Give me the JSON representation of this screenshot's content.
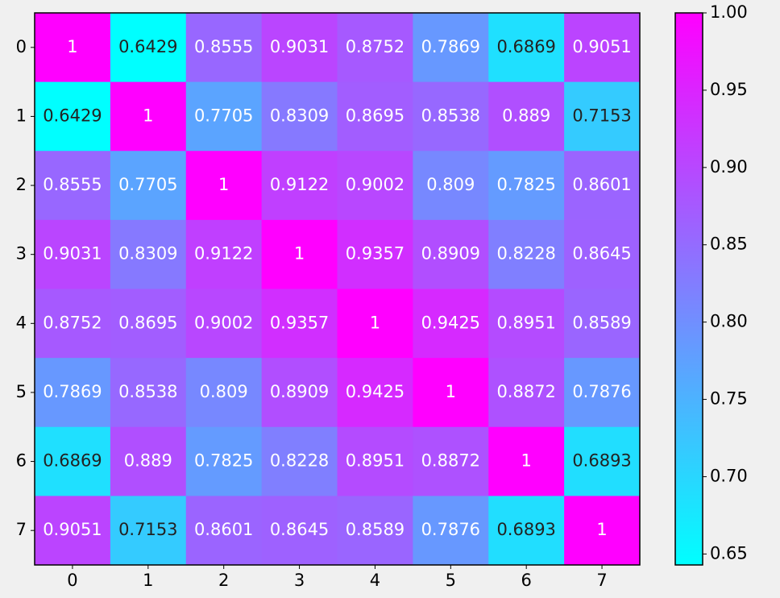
{
  "chart_data": {
    "type": "heatmap",
    "x": [
      "0",
      "1",
      "2",
      "3",
      "4",
      "5",
      "6",
      "7"
    ],
    "y": [
      "0",
      "1",
      "2",
      "3",
      "4",
      "5",
      "6",
      "7"
    ],
    "values": [
      [
        1,
        0.6429,
        0.8555,
        0.9031,
        0.8752,
        0.7869,
        0.6869,
        0.9051
      ],
      [
        0.6429,
        1,
        0.7705,
        0.8309,
        0.8695,
        0.8538,
        0.889,
        0.7153
      ],
      [
        0.8555,
        0.7705,
        1,
        0.9122,
        0.9002,
        0.809,
        0.7825,
        0.8601
      ],
      [
        0.9031,
        0.8309,
        0.9122,
        1,
        0.9357,
        0.8909,
        0.8228,
        0.8645
      ],
      [
        0.8752,
        0.8695,
        0.9002,
        0.9357,
        1,
        0.9425,
        0.8951,
        0.8589
      ],
      [
        0.7869,
        0.8538,
        0.809,
        0.8909,
        0.9425,
        1,
        0.8872,
        0.7876
      ],
      [
        0.6869,
        0.889,
        0.7825,
        0.8228,
        0.8951,
        0.8872,
        1,
        0.6893
      ],
      [
        0.9051,
        0.7153,
        0.8601,
        0.8645,
        0.8589,
        0.7876,
        0.6893,
        1
      ]
    ],
    "colormap": "cool",
    "zlim": [
      0.6429,
      1
    ],
    "zticks": [
      0.65,
      {
        "value": 0.7,
        "label": "0.70"
      },
      0.75,
      {
        "value": 0.8,
        "label": "0.80"
      },
      0.85,
      {
        "value": 0.9,
        "label": "0.90"
      },
      0.95,
      {
        "value": 1,
        "label": "1.00"
      }
    ]
  }
}
